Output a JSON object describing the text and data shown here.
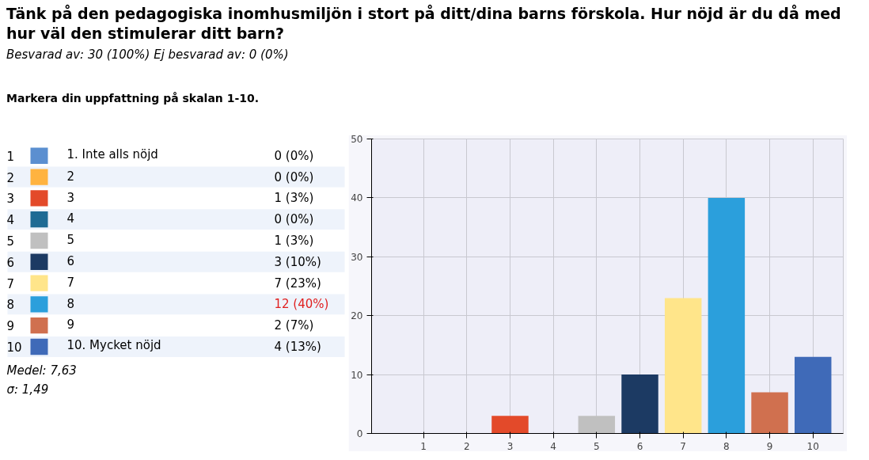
{
  "chart_data": {
    "type": "bar",
    "title": "Tänk på den pedagogiska inomhusmiljön i stort på ditt/dina barns förskola. Hur nöjd är du då med hur väl den stimulerar ditt barn?",
    "subtitle": "Besvarad av: 30 (100%) Ej besvarad av: 0 (0%)",
    "categories": [
      "1",
      "2",
      "3",
      "4",
      "5",
      "6",
      "7",
      "8",
      "9",
      "10"
    ],
    "series": [
      {
        "name": "1. Inte alls nöjd",
        "color": "#5b8fd0",
        "values": [
          0,
          null,
          null,
          null,
          null,
          null,
          null,
          null,
          null,
          null
        ]
      },
      {
        "name": "2",
        "color": "#ffb340",
        "values": [
          null,
          0,
          null,
          null,
          null,
          null,
          null,
          null,
          null,
          null
        ]
      },
      {
        "name": "3",
        "color": "#e34a2a",
        "values": [
          null,
          null,
          3,
          null,
          null,
          null,
          null,
          null,
          null,
          null
        ]
      },
      {
        "name": "4",
        "color": "#1f6b94",
        "values": [
          null,
          null,
          null,
          0,
          null,
          null,
          null,
          null,
          null,
          null
        ]
      },
      {
        "name": "5",
        "color": "#c0c0c0",
        "values": [
          null,
          null,
          null,
          null,
          3,
          null,
          null,
          null,
          null,
          null
        ]
      },
      {
        "name": "6",
        "color": "#1c3a63",
        "values": [
          null,
          null,
          null,
          null,
          null,
          10,
          null,
          null,
          null,
          null
        ]
      },
      {
        "name": "7",
        "color": "#ffe58a",
        "values": [
          null,
          null,
          null,
          null,
          null,
          null,
          23,
          null,
          null,
          null
        ]
      },
      {
        "name": "8",
        "color": "#2b9fdc",
        "values": [
          null,
          null,
          null,
          null,
          null,
          null,
          null,
          40,
          null,
          null
        ]
      },
      {
        "name": "9",
        "color": "#d0704f",
        "values": [
          null,
          null,
          null,
          null,
          null,
          null,
          null,
          null,
          7,
          null
        ]
      },
      {
        "name": "10. Mycket nöjd",
        "color": "#3f6ab8",
        "values": [
          null,
          null,
          null,
          null,
          null,
          null,
          null,
          null,
          null,
          13
        ]
      }
    ],
    "ylim": [
      0,
      50
    ],
    "yticks": [
      0,
      10,
      20,
      30,
      40,
      50
    ],
    "grid": true,
    "legend": "left",
    "annotations": [
      "Markera din uppfattning på skalan 1-10.",
      "0 (0%)",
      "0 (0%)",
      "1 (3%)",
      "0 (0%)",
      "1 (3%)",
      "3 (10%)",
      "7 (23%)",
      "12 (40%)",
      "2 (7%)",
      "4 (13%)",
      "Medel: 7,63",
      "σ: 1,49"
    ]
  }
}
